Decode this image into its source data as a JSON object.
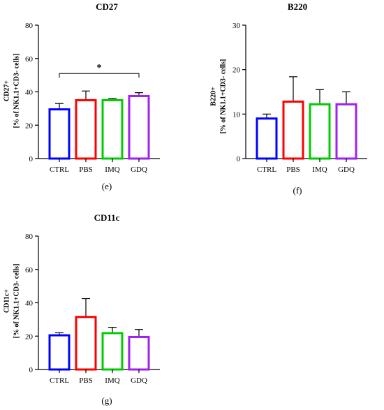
{
  "chart_data": [
    {
      "type": "bar",
      "title": "CD27",
      "ylabel_line1": "CD27+",
      "ylabel_line2": "[% of NK1.1+CD3- cells]",
      "panel_label": "(e)",
      "categories": [
        "CTRL",
        "PBS",
        "IMQ",
        "GDQ"
      ],
      "values": [
        29.5,
        35,
        35,
        37.5
      ],
      "errors": [
        3.5,
        5.5,
        1,
        2
      ],
      "ylim": [
        0,
        80
      ],
      "yticks": [
        "0",
        "20",
        "40",
        "60",
        "80"
      ],
      "significance": {
        "label": "*",
        "from": "CTRL",
        "to": "GDQ",
        "y": 51
      }
    },
    {
      "type": "bar",
      "title": "B220",
      "ylabel_line1": "B220+",
      "ylabel_line2": "[% of NK1.1+CD3- cells]",
      "panel_label": "(f)",
      "categories": [
        "CTRL",
        "PBS",
        "IMQ",
        "GDQ"
      ],
      "values": [
        9,
        12.8,
        12.2,
        12.2
      ],
      "errors": [
        1,
        5.6,
        3.3,
        2.8
      ],
      "ylim": [
        0,
        30
      ],
      "yticks": [
        "0",
        "10",
        "20",
        "30"
      ]
    },
    {
      "type": "bar",
      "title": "CD11c",
      "ylabel_line1": "CD11c+",
      "ylabel_line2": "[% of NK1.1+CD3- cells]",
      "panel_label": "(g)",
      "categories": [
        "CTRL",
        "PBS",
        "IMQ",
        "GDQ"
      ],
      "values": [
        20.5,
        31.5,
        21.8,
        19.5
      ],
      "errors": [
        1.5,
        11,
        3.5,
        4.5
      ],
      "ylim": [
        0,
        80
      ],
      "yticks": [
        "0",
        "20",
        "40",
        "60",
        "80"
      ]
    }
  ],
  "colors": [
    "#0000ff",
    "#ff0000",
    "#00cc00",
    "#a020f0"
  ]
}
